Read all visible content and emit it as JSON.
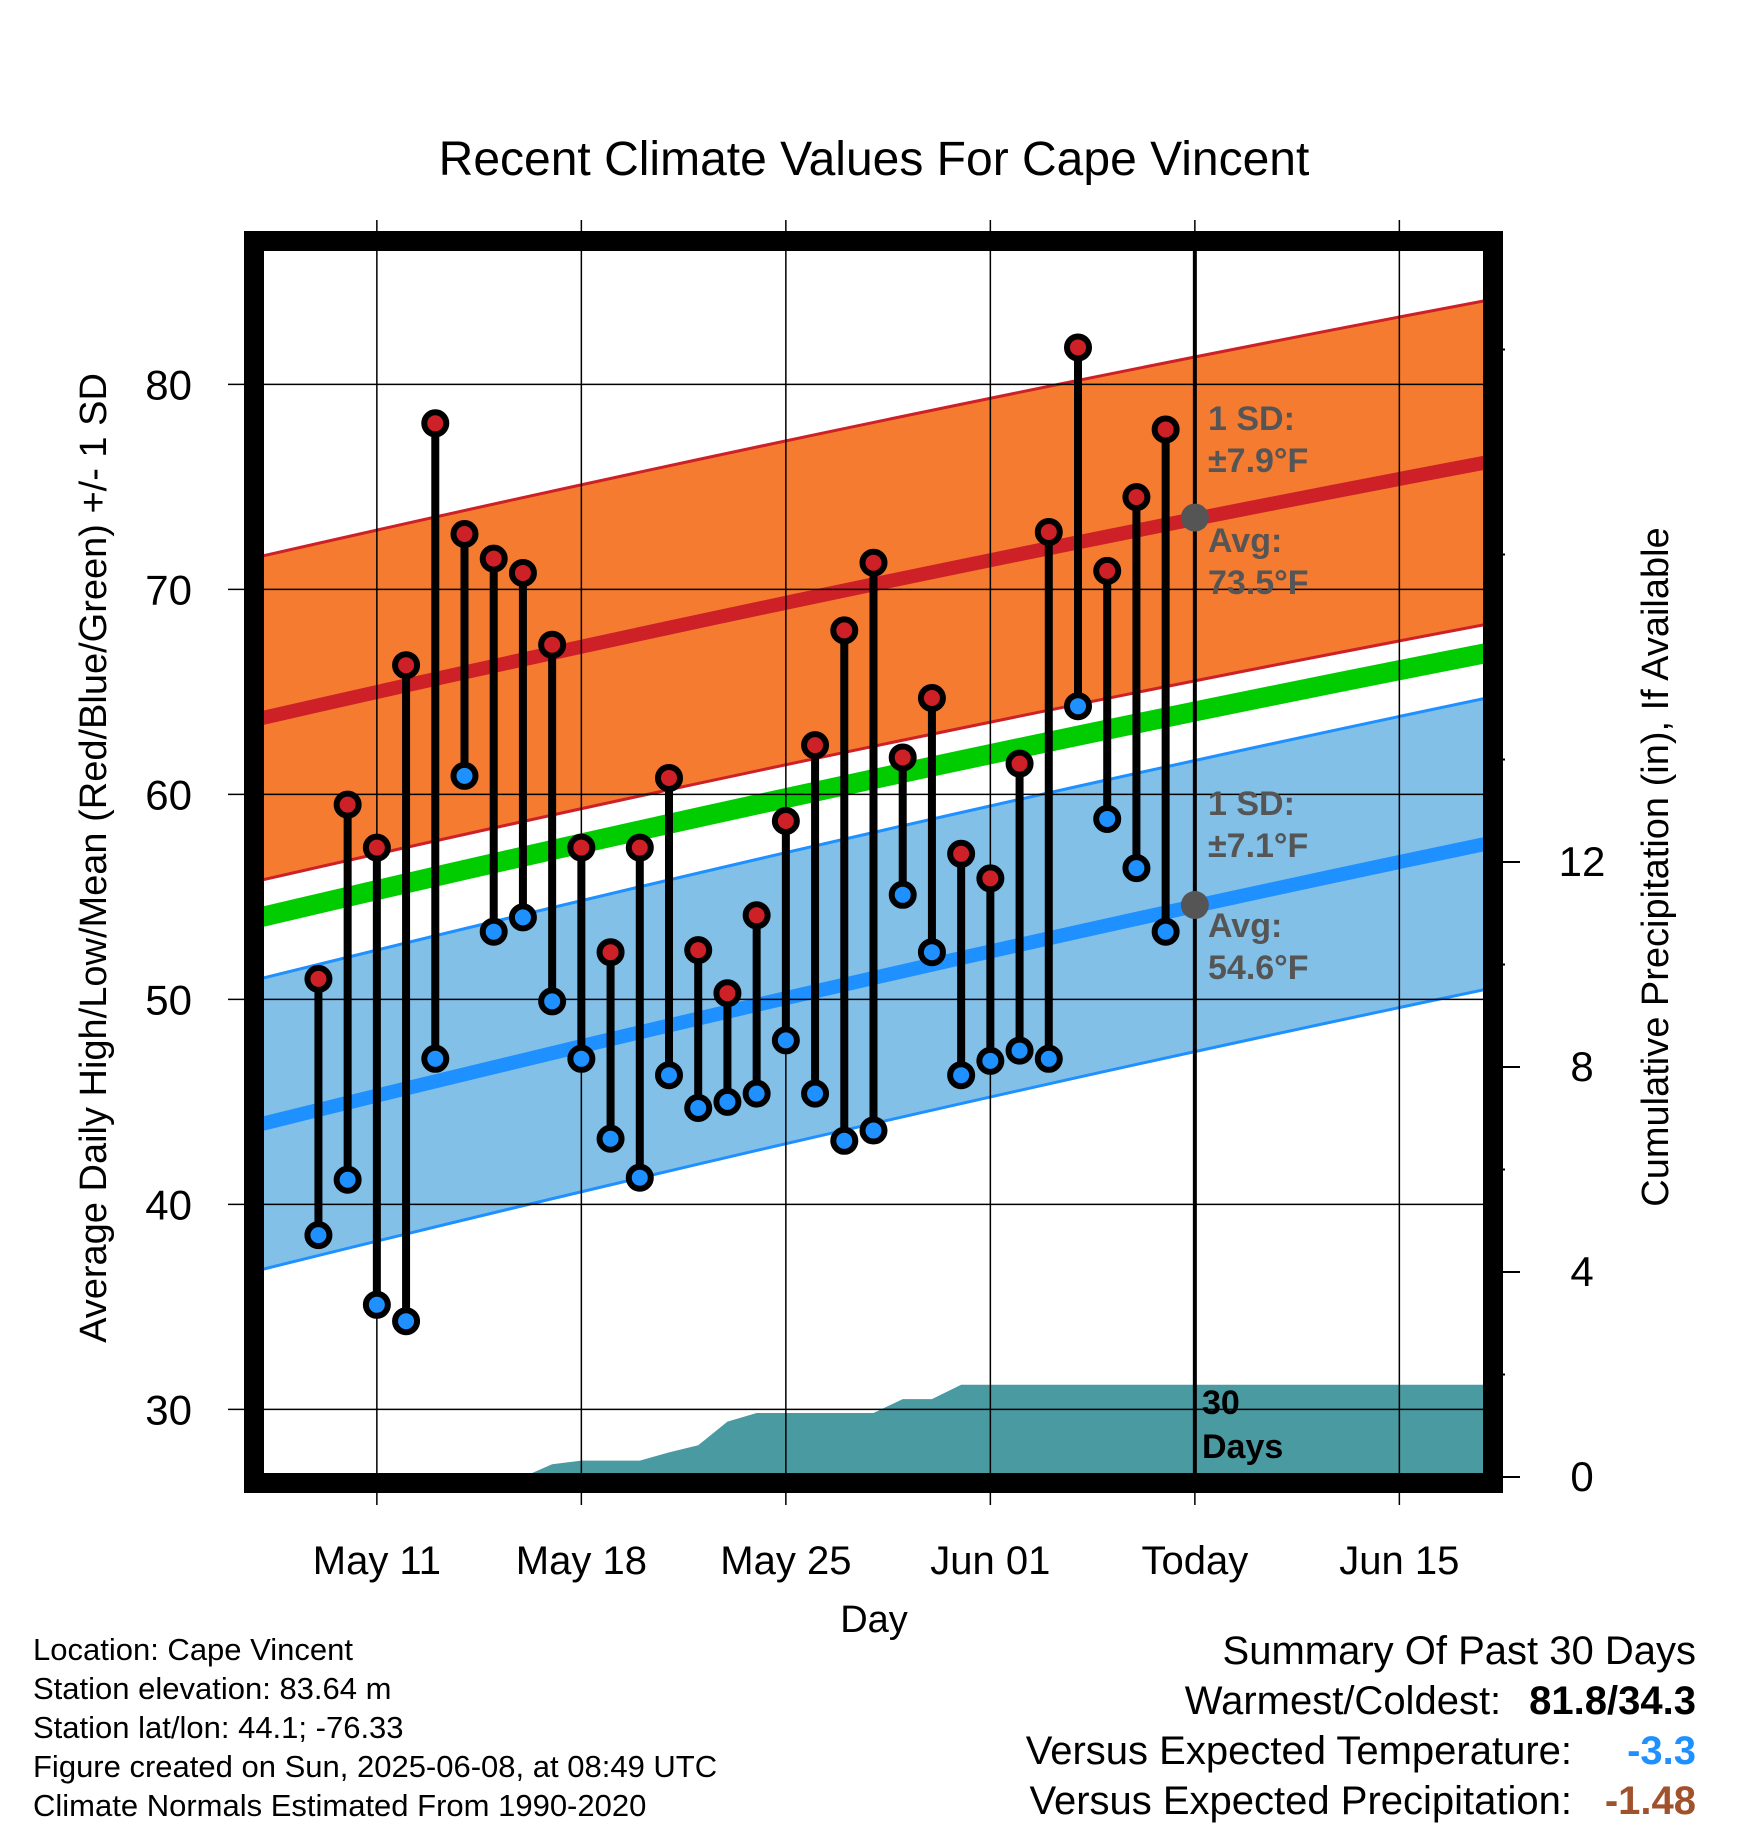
{
  "chart_data": {
    "type": "line",
    "title": "Recent Climate Values For Cape Vincent",
    "xlabel": "Day",
    "ylabel": "Average Daily High/Low/Mean (Red/Blue/Green) +/- 1 SD",
    "y2label": "Cumulative Precipitation (in), If Available",
    "x_ticks": [
      "May 11",
      "May 18",
      "May 25",
      "Jun 01",
      "Today",
      "Jun 15"
    ],
    "y_ticks": [
      "30",
      "40",
      "50",
      "60",
      "70",
      "80"
    ],
    "y2_ticks": [
      "0",
      "4",
      "8",
      "12"
    ],
    "xlim": [
      "2025-05-07",
      "2025-06-18"
    ],
    "ylim": [
      26.7,
      86.7
    ],
    "y2lim": [
      0,
      24
    ],
    "grid": true,
    "daily": {
      "dates": [
        "2025-05-09",
        "2025-05-10",
        "2025-05-11",
        "2025-05-12",
        "2025-05-13",
        "2025-05-14",
        "2025-05-15",
        "2025-05-16",
        "2025-05-17",
        "2025-05-18",
        "2025-05-19",
        "2025-05-20",
        "2025-05-21",
        "2025-05-22",
        "2025-05-23",
        "2025-05-24",
        "2025-05-25",
        "2025-05-26",
        "2025-05-27",
        "2025-05-28",
        "2025-05-29",
        "2025-05-30",
        "2025-05-31",
        "2025-06-01",
        "2025-06-02",
        "2025-06-03",
        "2025-06-04",
        "2025-06-05",
        "2025-06-06",
        "2025-06-07"
      ],
      "high": [
        51.0,
        59.5,
        57.4,
        66.3,
        78.1,
        72.7,
        71.5,
        70.8,
        67.3,
        57.4,
        52.3,
        57.4,
        60.8,
        52.4,
        50.3,
        54.1,
        58.7,
        62.4,
        68.0,
        71.3,
        61.8,
        64.7,
        57.1,
        55.9,
        61.5,
        72.8,
        81.8,
        70.9,
        74.5,
        77.8
      ],
      "low": [
        38.5,
        41.2,
        35.1,
        34.3,
        47.1,
        60.9,
        53.3,
        54.0,
        49.9,
        47.1,
        43.2,
        41.3,
        46.3,
        44.7,
        45.0,
        45.4,
        48.0,
        45.4,
        43.1,
        43.6,
        55.1,
        52.3,
        46.3,
        47.0,
        47.5,
        47.1,
        64.3,
        58.8,
        56.4,
        53.3
      ]
    },
    "normals": {
      "dates": [
        "2025-05-07",
        "2025-06-18"
      ],
      "avg_high": [
        63.7,
        76.2
      ],
      "avg_low": [
        43.9,
        57.6
      ],
      "avg_mean": [
        54.0,
        66.9
      ],
      "high_sd": 7.9,
      "low_sd": 7.1
    },
    "precip": {
      "dates": [
        "2025-05-15",
        "2025-05-16",
        "2025-05-17",
        "2025-05-18",
        "2025-05-19",
        "2025-05-20",
        "2025-05-21",
        "2025-05-22",
        "2025-05-23",
        "2025-05-24",
        "2025-05-25",
        "2025-05-26",
        "2025-05-27",
        "2025-05-28",
        "2025-05-29",
        "2025-05-30",
        "2025-05-31",
        "2025-06-18"
      ],
      "cumulative": [
        0.0,
        0.0,
        0.25,
        0.32,
        0.32,
        0.32,
        0.48,
        0.62,
        1.08,
        1.25,
        1.25,
        1.25,
        1.25,
        1.25,
        1.52,
        1.52,
        1.8,
        1.8
      ]
    },
    "annotations": {
      "high_sd_label": "1 SD:",
      "high_sd_value": "±7.9°F",
      "high_avg_label": "Avg:",
      "high_avg_value": "73.5°F",
      "low_sd_label": "1 SD:",
      "low_sd_value": "±7.1°F",
      "low_avg_label": "Avg:",
      "low_avg_value": "54.6°F",
      "today_avg_high": 73.5,
      "today_avg_low": 54.6,
      "days_label_1": "30",
      "days_label_2": "Days"
    },
    "colors": {
      "high_band": "#f47b30",
      "high_line": "#cd2027",
      "low_band": "#82c0e8",
      "low_line": "#1e90ff",
      "mean_line": "#00cc00",
      "precip": "#4a9aa2",
      "high_dot": "#cd2027",
      "low_dot": "#1e90ff",
      "annotation": "#555555"
    }
  },
  "footer": {
    "location": "Location: Cape Vincent",
    "elevation": "Station elevation: 83.64 m",
    "latlon": "Station lat/lon: 44.1; -76.33",
    "created": "Figure created on Sun, 2025-06-08, at 08:49 UTC",
    "normals": "Climate Normals Estimated From 1990-2020"
  },
  "summary": {
    "title": "Summary Of Past 30 Days",
    "warm_cold_label": "Warmest/Coldest:",
    "warm_cold_value": "81.8/34.3",
    "temp_label": "Versus Expected Temperature:",
    "temp_value": "-3.3",
    "temp_color": "#1e90ff",
    "precip_label": "Versus Expected Precipitation:",
    "precip_value": "-1.48",
    "precip_color": "#a0522d"
  }
}
